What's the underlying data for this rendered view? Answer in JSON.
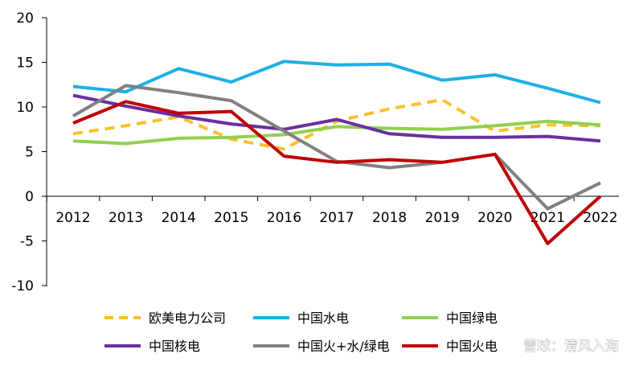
{
  "chart_data": {
    "type": "line",
    "x": [
      "2012",
      "2013",
      "2014",
      "2015",
      "2016",
      "2017",
      "2018",
      "2019",
      "2020",
      "2021",
      "2022"
    ],
    "ylim": [
      -10,
      20
    ],
    "yticks": [
      20,
      15,
      10,
      5,
      0,
      -5,
      -10
    ],
    "grid": false,
    "legend_position": "bottom",
    "series": [
      {
        "name": "欧美电力公司",
        "color": "#fbc02d",
        "dashed": true,
        "values": [
          7.0,
          7.9,
          8.9,
          6.4,
          5.3,
          8.4,
          9.8,
          10.8,
          7.3,
          8.0,
          7.9
        ]
      },
      {
        "name": "中国水电",
        "color": "#1eb0e6",
        "dashed": false,
        "values": [
          12.3,
          11.7,
          14.3,
          12.8,
          15.1,
          14.7,
          14.8,
          13.0,
          13.6,
          12.1,
          10.5
        ]
      },
      {
        "name": "中国绿电",
        "color": "#92d050",
        "dashed": false,
        "values": [
          6.2,
          5.9,
          6.5,
          6.6,
          6.9,
          7.8,
          7.6,
          7.5,
          7.9,
          8.4,
          8.0
        ]
      },
      {
        "name": "中国核电",
        "color": "#6a2fa0",
        "dashed": false,
        "values": [
          11.3,
          10.1,
          9.0,
          8.1,
          7.5,
          8.6,
          7.0,
          6.6,
          6.6,
          6.7,
          6.2
        ]
      },
      {
        "name": "中国火+水/绿电",
        "color": "#808080",
        "dashed": false,
        "values": [
          9.0,
          12.4,
          11.6,
          10.7,
          7.3,
          3.9,
          3.2,
          3.8,
          4.7,
          -1.4,
          1.5
        ]
      },
      {
        "name": "中国火电",
        "color": "#c00000",
        "dashed": false,
        "values": [
          8.2,
          10.6,
          9.3,
          9.5,
          4.5,
          3.8,
          4.1,
          3.8,
          4.7,
          -5.3,
          0.0
        ]
      }
    ]
  },
  "watermark": "雪球：清风入海"
}
